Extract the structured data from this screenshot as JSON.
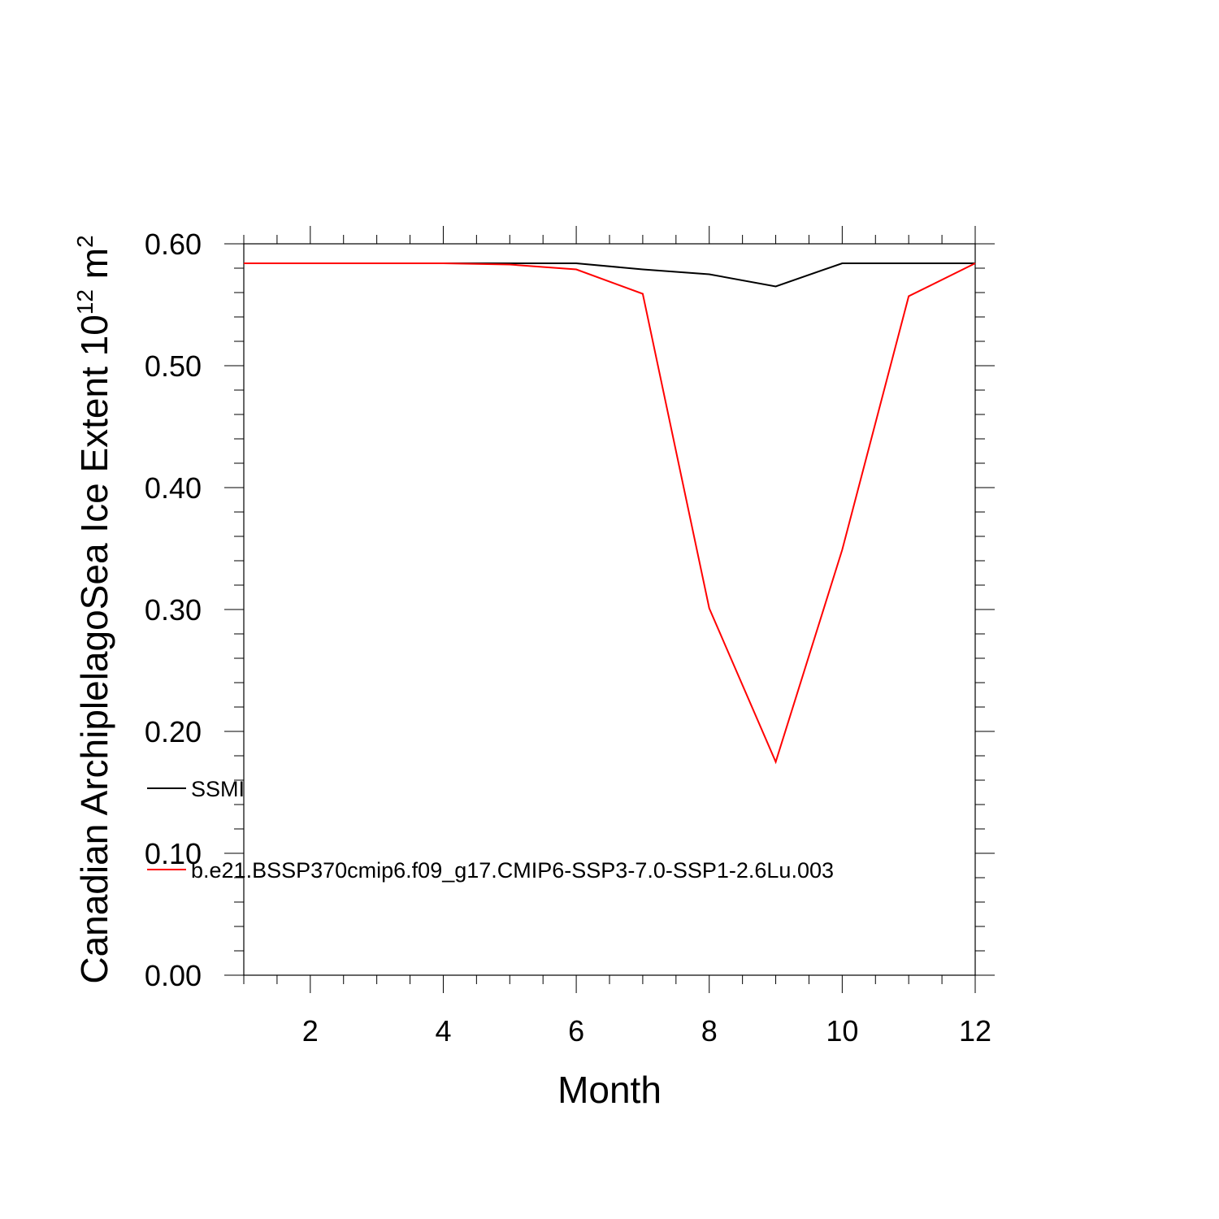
{
  "chart_data": {
    "type": "line",
    "xlabel": "Month",
    "ylabel": {
      "prefix": "Canadian ArchiplelagoSea Ice Extent 10",
      "sup1": "12",
      "mid": " m",
      "sup2": "2"
    },
    "xlim": [
      1,
      12
    ],
    "ylim": [
      0,
      0.6
    ],
    "x_ticks": [
      2,
      4,
      6,
      8,
      10,
      12
    ],
    "y_ticks": [
      "0.00",
      "0.10",
      "0.20",
      "0.30",
      "0.40",
      "0.50",
      "0.60"
    ],
    "x": [
      1,
      2,
      3,
      4,
      5,
      6,
      7,
      8,
      9,
      10,
      11,
      12
    ],
    "series": [
      {
        "name": "SSMI",
        "color": "#000000",
        "values": [
          0.584,
          0.584,
          0.584,
          0.584,
          0.584,
          0.584,
          0.579,
          0.575,
          0.565,
          0.584,
          0.584,
          0.584
        ]
      },
      {
        "name": "b.e21.BSSP370cmip6.f09_g17.CMIP6-SSP3-7.0-SSP1-2.6Lu.003",
        "color": "#ff0000",
        "values": [
          0.584,
          0.584,
          0.584,
          0.584,
          0.583,
          0.579,
          0.559,
          0.301,
          0.175,
          0.349,
          0.557,
          0.584
        ]
      }
    ],
    "grid": false,
    "legend_placement": "lower-left inside"
  }
}
